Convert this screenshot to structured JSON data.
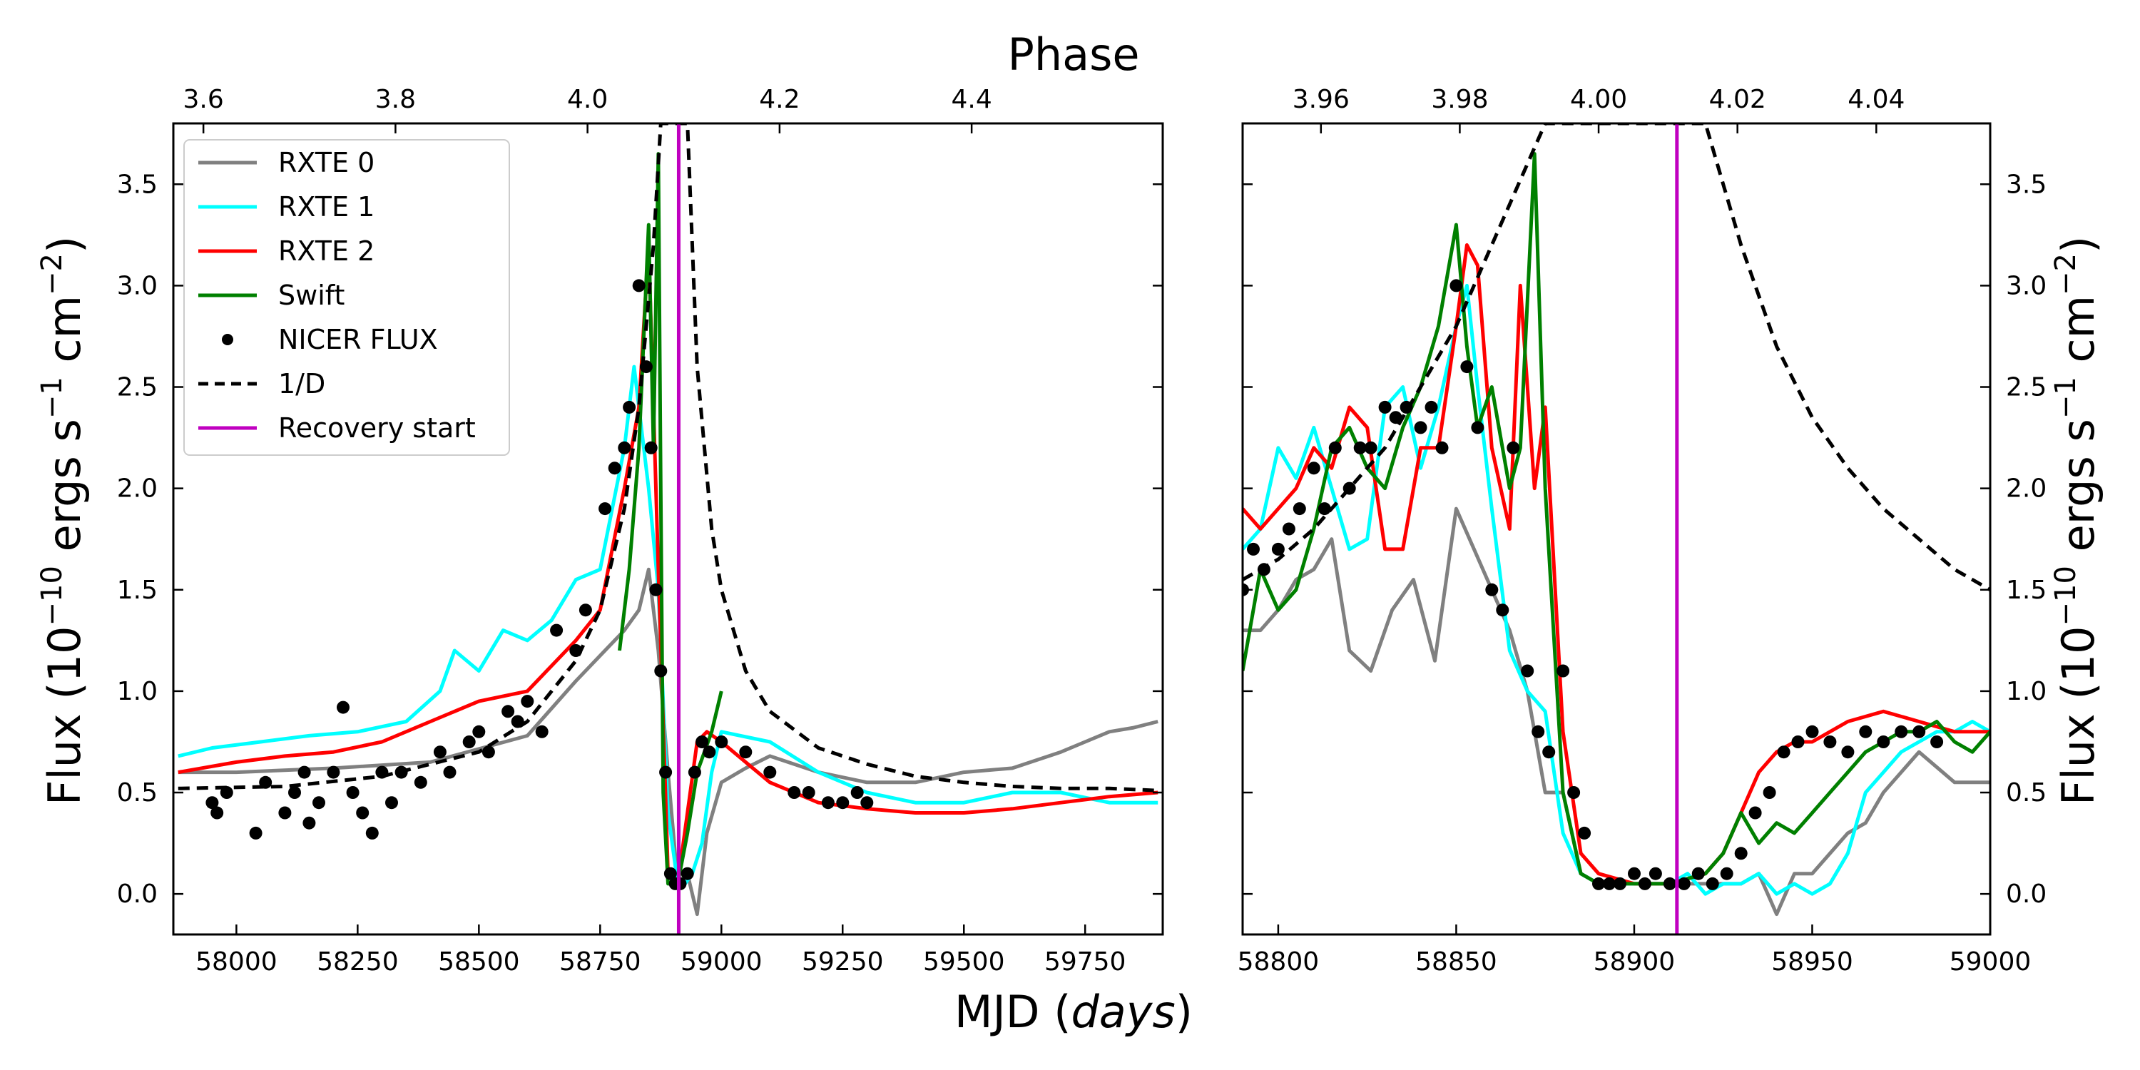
{
  "chart_data": [
    {
      "type": "line",
      "panel": "left",
      "xlabel_prefix": "MJD (",
      "xlabel_italic": "days",
      "xlabel_suffix": ")",
      "ylabel_prefix": "Flux (10",
      "ylabel_exp1": "−10",
      "ylabel_mid": " ergs s",
      "ylabel_exp2": "−1",
      "ylabel_mid2": " cm",
      "ylabel_exp3": "−2",
      "ylabel_suffix": ")",
      "top_label": "Phase",
      "xlim": [
        57870,
        59910
      ],
      "ylim": [
        -0.2,
        3.8
      ],
      "xticks": [
        58000,
        58250,
        58500,
        58750,
        59000,
        59250,
        59500,
        59750
      ],
      "yticks": [
        0.0,
        0.5,
        1.0,
        1.5,
        2.0,
        2.5,
        3.0,
        3.5
      ],
      "phase_ticks": [
        {
          "mjd": 57932,
          "label": "3.6"
        },
        {
          "mjd": 58328,
          "label": "3.8"
        },
        {
          "mjd": 58724,
          "label": "4.0"
        },
        {
          "mjd": 59120,
          "label": "4.2"
        },
        {
          "mjd": 59516,
          "label": "4.4"
        }
      ],
      "recovery_start": 58912,
      "legend": [
        "RXTE 0",
        "RXTE 1",
        "RXTE 2",
        "Swift",
        "NICER FLUX",
        "1/D",
        "Recovery start"
      ],
      "series": [
        {
          "name": "RXTE 0",
          "color": "#808080",
          "x": [
            57880,
            58000,
            58200,
            58400,
            58600,
            58700,
            58760,
            58800,
            58830,
            58850,
            58870,
            58890,
            58910,
            58930,
            58950,
            58970,
            59000,
            59050,
            59100,
            59200,
            59300,
            59400,
            59500,
            59600,
            59700,
            59750,
            59800,
            59850,
            59900
          ],
          "y": [
            0.6,
            0.6,
            0.62,
            0.65,
            0.78,
            1.05,
            1.2,
            1.3,
            1.4,
            1.6,
            1.2,
            0.6,
            0.05,
            0.1,
            -0.1,
            0.3,
            0.55,
            0.62,
            0.68,
            0.6,
            0.55,
            0.55,
            0.6,
            0.62,
            0.7,
            0.75,
            0.8,
            0.82,
            0.85
          ]
        },
        {
          "name": "RXTE 1",
          "color": "#00FFFF",
          "x": [
            57880,
            57950,
            58050,
            58150,
            58250,
            58350,
            58420,
            58450,
            58500,
            58550,
            58600,
            58650,
            58700,
            58750,
            58800,
            58820,
            58850,
            58870,
            58890,
            58910,
            58925,
            58940,
            58960,
            58980,
            59000,
            59100,
            59200,
            59300,
            59400,
            59500,
            59600,
            59700,
            59800,
            59900
          ],
          "y": [
            0.68,
            0.72,
            0.75,
            0.78,
            0.8,
            0.85,
            1.0,
            1.2,
            1.1,
            1.3,
            1.25,
            1.35,
            1.55,
            1.6,
            2.2,
            2.6,
            2.0,
            1.5,
            0.4,
            0.05,
            0.05,
            0.1,
            0.25,
            0.6,
            0.8,
            0.75,
            0.6,
            0.5,
            0.45,
            0.45,
            0.5,
            0.5,
            0.45,
            0.45
          ]
        },
        {
          "name": "RXTE 2",
          "color": "#FF0000",
          "x": [
            57880,
            58000,
            58100,
            58200,
            58300,
            58400,
            58500,
            58600,
            58700,
            58750,
            58800,
            58830,
            58850,
            58870,
            58890,
            58910,
            58930,
            58950,
            58970,
            59000,
            59050,
            59100,
            59200,
            59300,
            59400,
            59500,
            59600,
            59700,
            59800,
            59900
          ],
          "y": [
            0.6,
            0.65,
            0.68,
            0.7,
            0.75,
            0.85,
            0.95,
            1.0,
            1.25,
            1.4,
            2.0,
            2.4,
            3.2,
            1.6,
            0.1,
            0.05,
            0.4,
            0.75,
            0.8,
            0.75,
            0.65,
            0.55,
            0.45,
            0.42,
            0.4,
            0.4,
            0.42,
            0.45,
            0.48,
            0.5
          ]
        },
        {
          "name": "Swift",
          "color": "#008000",
          "x": [
            58790,
            58810,
            58830,
            58850,
            58860,
            58870,
            58875,
            58880,
            58890,
            58910,
            58930,
            58950,
            58980,
            59000
          ],
          "y": [
            1.2,
            1.6,
            2.2,
            3.3,
            2.2,
            3.65,
            2.0,
            0.5,
            0.05,
            0.05,
            0.3,
            0.6,
            0.8,
            1.0
          ]
        },
        {
          "name": "1/D",
          "color": "#000000",
          "dashed": true,
          "x": [
            57880,
            58100,
            58300,
            58500,
            58600,
            58700,
            58750,
            58800,
            58830,
            58860,
            58875,
            58930,
            58950,
            58980,
            59000,
            59050,
            59100,
            59200,
            59300,
            59400,
            59500,
            59600,
            59700,
            59800,
            59900
          ],
          "y": [
            0.52,
            0.53,
            0.58,
            0.7,
            0.85,
            1.15,
            1.4,
            1.9,
            2.4,
            3.2,
            3.8,
            3.8,
            2.6,
            1.8,
            1.5,
            1.1,
            0.9,
            0.72,
            0.64,
            0.58,
            0.55,
            0.53,
            0.52,
            0.52,
            0.51
          ]
        }
      ],
      "scatter": {
        "name": "NICER FLUX",
        "color": "#000000",
        "x": [
          57950,
          57960,
          57980,
          58040,
          58060,
          58100,
          58120,
          58140,
          58150,
          58170,
          58200,
          58220,
          58240,
          58260,
          58280,
          58300,
          58320,
          58340,
          58380,
          58420,
          58440,
          58480,
          58500,
          58520,
          58560,
          58580,
          58600,
          58630,
          58660,
          58700,
          58720,
          58760,
          58780,
          58800,
          58810,
          58830,
          58845,
          58855,
          58865,
          58875,
          58885,
          58895,
          58905,
          58915,
          58930,
          58945,
          58960,
          58975,
          59000,
          59050,
          59100,
          59150,
          59180,
          59220,
          59250,
          59280,
          59300
        ],
        "y": [
          0.45,
          0.4,
          0.5,
          0.3,
          0.55,
          0.4,
          0.5,
          0.6,
          0.35,
          0.45,
          0.6,
          0.92,
          0.5,
          0.4,
          0.3,
          0.6,
          0.45,
          0.6,
          0.55,
          0.7,
          0.6,
          0.75,
          0.8,
          0.7,
          0.9,
          0.85,
          0.95,
          0.8,
          1.3,
          1.2,
          1.4,
          1.9,
          2.1,
          2.2,
          2.4,
          3.0,
          2.6,
          2.2,
          1.5,
          1.1,
          0.6,
          0.1,
          0.05,
          0.05,
          0.1,
          0.6,
          0.75,
          0.7,
          0.75,
          0.7,
          0.6,
          0.5,
          0.5,
          0.45,
          0.45,
          0.5,
          0.45
        ]
      }
    },
    {
      "type": "line",
      "panel": "right",
      "xlim": [
        58790,
        59000
      ],
      "ylim": [
        -0.2,
        3.8
      ],
      "xticks": [
        58800,
        58850,
        58900,
        58950,
        59000
      ],
      "yticks": [
        0.0,
        0.5,
        1.0,
        1.5,
        2.0,
        2.5,
        3.0,
        3.5
      ],
      "phase_ticks": [
        {
          "mjd": 58812,
          "label": "3.96"
        },
        {
          "mjd": 58851,
          "label": "3.98"
        },
        {
          "mjd": 58890,
          "label": "4.00"
        },
        {
          "mjd": 58929,
          "label": "4.02"
        },
        {
          "mjd": 58968,
          "label": "4.04"
        }
      ],
      "recovery_start": 58912,
      "series": [
        {
          "name": "RXTE 0",
          "color": "#808080",
          "x": [
            58790,
            58795,
            58800,
            58805,
            58810,
            58815,
            58820,
            58826,
            58832,
            58838,
            58844,
            58850,
            58855,
            58860,
            58865,
            58870,
            58875,
            58880,
            58885,
            58890,
            58900,
            58910,
            58920,
            58930,
            58935,
            58940,
            58945,
            58950,
            58955,
            58960,
            58965,
            58970,
            58975,
            58980,
            58990,
            59000
          ],
          "y": [
            1.3,
            1.3,
            1.4,
            1.55,
            1.6,
            1.75,
            1.2,
            1.1,
            1.4,
            1.55,
            1.15,
            1.9,
            1.7,
            1.5,
            1.3,
            1.0,
            0.5,
            0.5,
            0.1,
            0.05,
            0.05,
            0.05,
            0.05,
            0.05,
            0.1,
            -0.1,
            0.1,
            0.1,
            0.2,
            0.3,
            0.35,
            0.5,
            0.6,
            0.7,
            0.55,
            0.55
          ]
        },
        {
          "name": "RXTE 1",
          "color": "#00FFFF",
          "x": [
            58790,
            58795,
            58800,
            58805,
            58810,
            58815,
            58820,
            58825,
            58830,
            58835,
            58840,
            58845,
            58850,
            58853,
            58856,
            58860,
            58865,
            58870,
            58875,
            58880,
            58885,
            58890,
            58900,
            58910,
            58915,
            58920,
            58925,
            58930,
            58935,
            58940,
            58945,
            58950,
            58955,
            58960,
            58965,
            58970,
            58975,
            58980,
            58985,
            58990,
            58995,
            59000
          ],
          "y": [
            1.7,
            1.8,
            2.2,
            2.05,
            2.3,
            2.0,
            1.7,
            1.75,
            2.4,
            2.5,
            2.1,
            2.4,
            2.8,
            3.0,
            2.5,
            1.9,
            1.2,
            1.0,
            0.9,
            0.3,
            0.1,
            0.05,
            0.05,
            0.05,
            0.1,
            0.0,
            0.05,
            0.05,
            0.1,
            0.0,
            0.05,
            0.0,
            0.05,
            0.2,
            0.5,
            0.6,
            0.7,
            0.75,
            0.8,
            0.8,
            0.85,
            0.8
          ]
        },
        {
          "name": "RXTE 2",
          "color": "#FF0000",
          "x": [
            58790,
            58795,
            58800,
            58805,
            58810,
            58815,
            58820,
            58825,
            58830,
            58835,
            58840,
            58845,
            58850,
            58853,
            58856,
            58860,
            58865,
            58868,
            58872,
            58875,
            58880,
            58885,
            58890,
            58900,
            58910,
            58920,
            58925,
            58930,
            58935,
            58940,
            58945,
            58950,
            58960,
            58970,
            58980,
            58990,
            59000
          ],
          "y": [
            1.9,
            1.8,
            1.9,
            2.0,
            2.2,
            2.1,
            2.4,
            2.3,
            1.7,
            1.7,
            2.2,
            2.2,
            2.8,
            3.2,
            3.1,
            2.2,
            1.8,
            3.0,
            2.0,
            2.4,
            0.8,
            0.2,
            0.1,
            0.05,
            0.05,
            0.1,
            0.2,
            0.4,
            0.6,
            0.7,
            0.75,
            0.75,
            0.85,
            0.9,
            0.85,
            0.8,
            0.8
          ]
        },
        {
          "name": "Swift",
          "color": "#008000",
          "x": [
            58790,
            58795,
            58800,
            58805,
            58810,
            58815,
            58820,
            58825,
            58830,
            58835,
            58840,
            58845,
            58850,
            58853,
            58856,
            58860,
            58865,
            58868,
            58872,
            58875,
            58880,
            58885,
            58890,
            58900,
            58910,
            58920,
            58925,
            58930,
            58935,
            58940,
            58945,
            58950,
            58955,
            58960,
            58965,
            58970,
            58975,
            58980,
            58985,
            58990,
            58995,
            59000
          ],
          "y": [
            1.1,
            1.6,
            1.4,
            1.5,
            1.8,
            2.2,
            2.3,
            2.1,
            2.0,
            2.3,
            2.5,
            2.8,
            3.3,
            2.7,
            2.3,
            2.5,
            2.0,
            2.2,
            3.65,
            2.0,
            0.5,
            0.1,
            0.05,
            0.05,
            0.05,
            0.1,
            0.2,
            0.4,
            0.25,
            0.35,
            0.3,
            0.4,
            0.5,
            0.6,
            0.7,
            0.75,
            0.8,
            0.8,
            0.85,
            0.75,
            0.7,
            0.8
          ]
        },
        {
          "name": "1/D",
          "color": "#000000",
          "dashed": true,
          "x": [
            58790,
            58800,
            58810,
            58820,
            58830,
            58840,
            58850,
            58860,
            58870,
            58875,
            58920,
            58925,
            58930,
            58940,
            58950,
            58960,
            58970,
            58980,
            58990,
            59000
          ],
          "y": [
            1.55,
            1.65,
            1.8,
            2.0,
            2.2,
            2.5,
            2.8,
            3.2,
            3.6,
            3.8,
            3.8,
            3.5,
            3.2,
            2.7,
            2.35,
            2.1,
            1.9,
            1.75,
            1.6,
            1.5
          ]
        }
      ],
      "scatter": {
        "name": "NICER FLUX",
        "color": "#000000",
        "x": [
          58790,
          58793,
          58796,
          58800,
          58803,
          58806,
          58810,
          58813,
          58816,
          58820,
          58823,
          58826,
          58830,
          58833,
          58836,
          58840,
          58843,
          58846,
          58850,
          58853,
          58856,
          58860,
          58863,
          58866,
          58870,
          58873,
          58876,
          58880,
          58883,
          58886,
          58890,
          58893,
          58896,
          58900,
          58903,
          58906,
          58910,
          58914,
          58918,
          58922,
          58926,
          58930,
          58934,
          58938,
          58942,
          58946,
          58950,
          58955,
          58960,
          58965,
          58970,
          58975,
          58980,
          58985
        ],
        "y": [
          1.5,
          1.7,
          1.6,
          1.7,
          1.8,
          1.9,
          2.1,
          1.9,
          2.2,
          2.0,
          2.2,
          2.2,
          2.4,
          2.35,
          2.4,
          2.3,
          2.4,
          2.2,
          3.0,
          2.6,
          2.3,
          1.5,
          1.4,
          2.2,
          1.1,
          0.8,
          0.7,
          1.1,
          0.5,
          0.3,
          0.05,
          0.05,
          0.05,
          0.1,
          0.05,
          0.1,
          0.05,
          0.05,
          0.1,
          0.05,
          0.1,
          0.2,
          0.4,
          0.5,
          0.7,
          0.75,
          0.8,
          0.75,
          0.7,
          0.8,
          0.75,
          0.8,
          0.8,
          0.75
        ]
      }
    }
  ]
}
